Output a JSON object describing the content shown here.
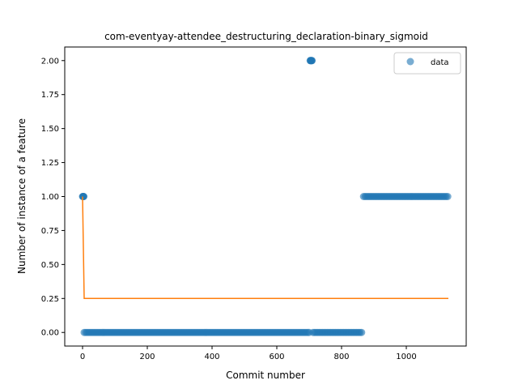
{
  "chart_data": {
    "type": "scatter",
    "title": "com-eventyay-attendee_destructuring_declaration-binary_sigmoid",
    "xlabel": "Commit number",
    "ylabel": "Number of instance of a feature",
    "xlim": [
      -55,
      1185
    ],
    "ylim": [
      -0.1,
      2.1
    ],
    "xticks": [
      0,
      200,
      400,
      600,
      800,
      1000
    ],
    "yticks": [
      0.0,
      0.25,
      0.5,
      0.75,
      1.0,
      1.25,
      1.5,
      1.75,
      2.0
    ],
    "xtick_labels": [
      "0",
      "200",
      "400",
      "600",
      "800",
      "1000"
    ],
    "ytick_labels": [
      "0.00",
      "0.25",
      "0.50",
      "0.75",
      "1.00",
      "1.25",
      "1.50",
      "1.75",
      "2.00"
    ],
    "grid": false,
    "legend_position": "top-right",
    "series": [
      {
        "name": "data",
        "kind": "scatter",
        "color": "#1f77b4",
        "segments": [
          {
            "x_from": 0,
            "x_to": 4,
            "step": 1,
            "y": 1
          },
          {
            "x_from": 5,
            "x_to": 700,
            "step": 5,
            "y": 0
          },
          {
            "x_from": 703,
            "x_to": 709,
            "step": 1,
            "y": 2
          },
          {
            "x_from": 712,
            "x_to": 865,
            "step": 5,
            "y": 0
          },
          {
            "x_from": 868,
            "x_to": 1130,
            "step": 5,
            "y": 1
          }
        ]
      },
      {
        "kind": "line",
        "color": "#ff7f0e",
        "x": [
          0,
          5,
          1130
        ],
        "y": [
          1.0,
          0.25,
          0.25
        ]
      }
    ]
  }
}
